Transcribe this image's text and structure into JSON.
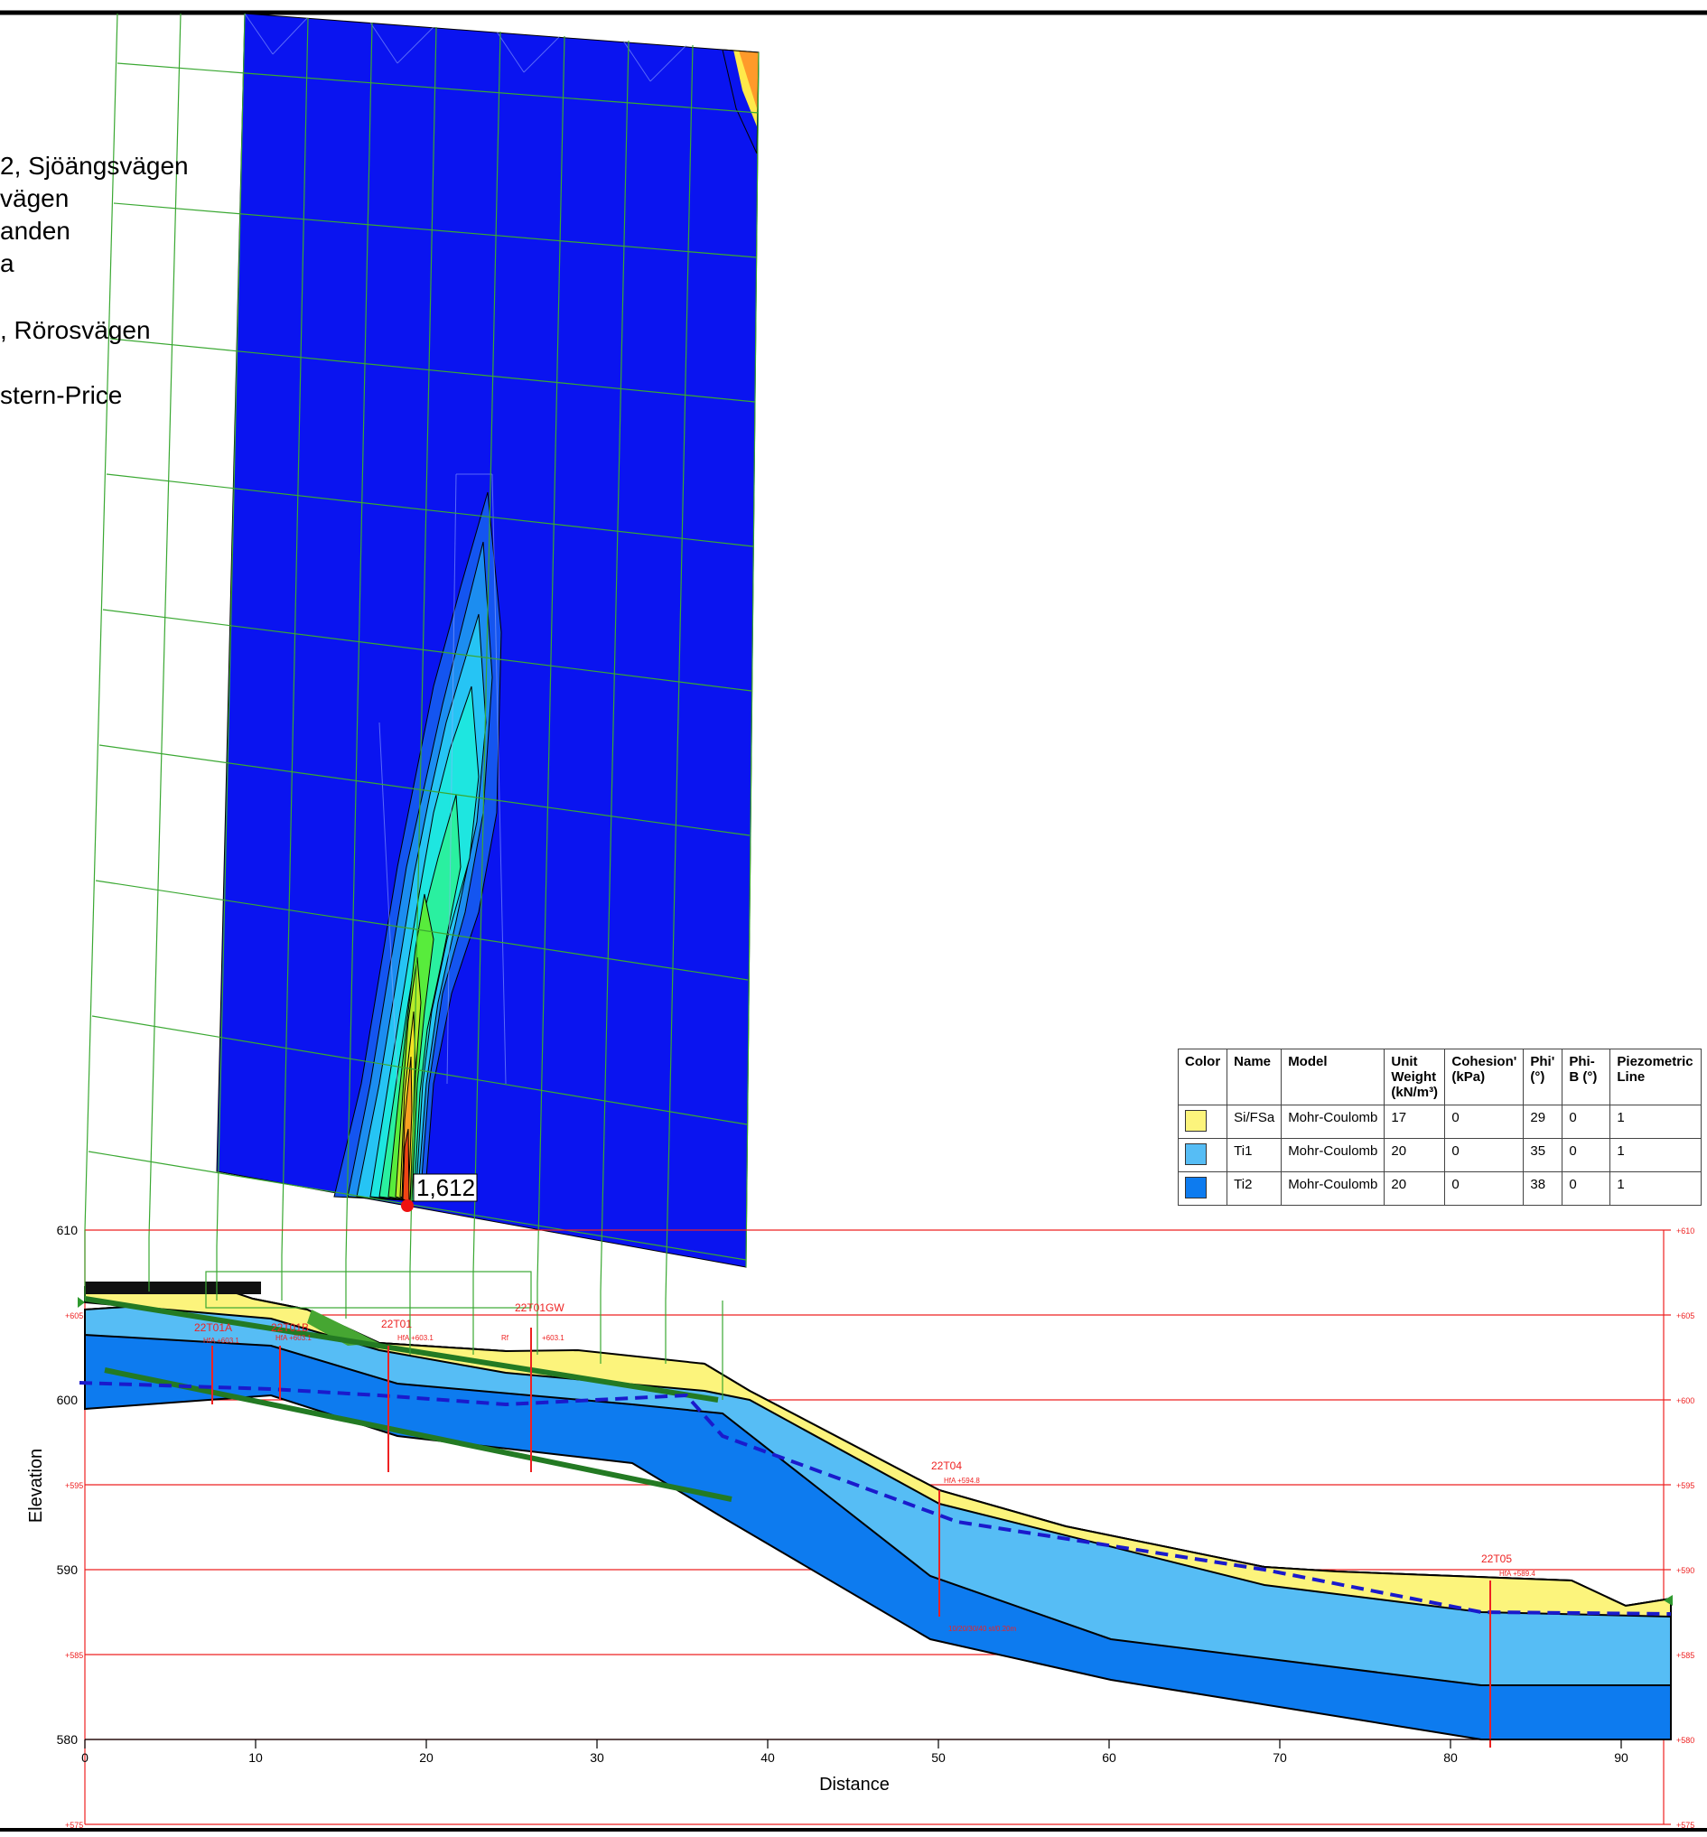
{
  "info_lines": [
    "2, Sjöängsvägen",
    "vägen",
    "anden",
    "a",
    "",
    ", Rörosvägen",
    "",
    "stern-Price"
  ],
  "min_factor_label": "1,612",
  "axes": {
    "xlabel": "Distance",
    "ylabel": "Elevation",
    "x_ticks": [
      "0",
      "10",
      "20",
      "30",
      "40",
      "50",
      "60",
      "70",
      "80",
      "90"
    ],
    "y_ticks": [
      "610",
      "605",
      "600",
      "595",
      "590",
      "585",
      "580"
    ],
    "right_ticks": [
      "+610",
      "+605",
      "+600",
      "+595",
      "+590",
      "+585",
      "+580",
      "+575"
    ],
    "left_ticks": [
      "+605",
      "+595",
      "+585",
      "+575"
    ]
  },
  "boreholes": [
    "22T01",
    "22T01B",
    "22T01A",
    "22T01GW",
    "22T04",
    "22T05"
  ],
  "borehole_notes": [
    "HfA +603.1",
    "HfA +603.1",
    "HfA +603.1",
    "+603.1",
    "HfA +594.8",
    "HfA +589.4",
    "10/20/30/40 st/0.20m",
    "Rf"
  ],
  "table": {
    "headers": [
      "Color",
      "Name",
      "Model",
      "Unit Weight (kN/m³)",
      "Cohesion' (kPa)",
      "Phi' (°)",
      "Phi-B (°)",
      "Piezometric Line"
    ],
    "rows": [
      {
        "color": "#fcf47c",
        "name": "Si/FSa",
        "model": "Mohr-Coulomb",
        "unit_weight": "17",
        "cohesion": "0",
        "phi": "29",
        "phi_b": "0",
        "piezo": "1"
      },
      {
        "color": "#56bdf5",
        "name": "Ti1",
        "model": "Mohr-Coulomb",
        "unit_weight": "20",
        "cohesion": "0",
        "phi": "35",
        "phi_b": "0",
        "piezo": "1"
      },
      {
        "color": "#0d7bef",
        "name": "Ti2",
        "model": "Mohr-Coulomb",
        "unit_weight": "20",
        "cohesion": "0",
        "phi": "38",
        "phi_b": "0",
        "piezo": "1"
      }
    ]
  },
  "colors": {
    "grid_red": "#ee2222",
    "grid_green": "#3aa832",
    "contour_base": "#0a14f0",
    "water_table": "#1a1acc",
    "soil_yellow": "#fcf47c",
    "soil_light": "#56bdf5",
    "soil_dark": "#0d7bef"
  }
}
